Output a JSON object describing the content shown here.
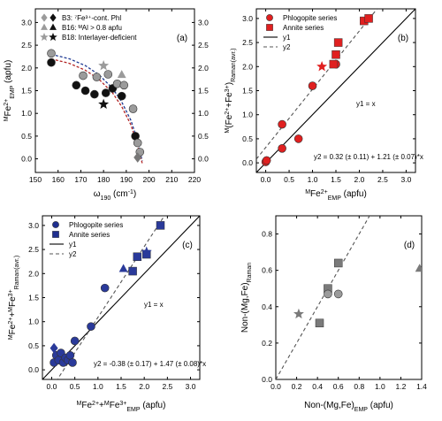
{
  "chart_data": [
    {
      "panel": "a",
      "type": "scatter",
      "xlabel": "ω190 (cm⁻¹)",
      "ylabel_left": "MFe2+EMP (apfu)",
      "ylabel_right": "",
      "xlim": [
        150,
        220
      ],
      "ylim": [
        -0.3,
        3.3
      ],
      "xticks": [
        150,
        160,
        170,
        180,
        190,
        200,
        210,
        220
      ],
      "yticks": [
        0.0,
        0.5,
        1.0,
        1.5,
        2.0,
        2.5,
        3.0
      ],
      "legend_placement": "top-left",
      "legend": [
        {
          "marker": "diamond",
          "label": "B3: ⁷Fe³⁺-cont. Phl"
        },
        {
          "marker": "triangle",
          "label": "B16: ᴹAl > 0.8 apfu"
        },
        {
          "marker": "star",
          "label": "B18: Interlayer-deficient"
        }
      ],
      "series": [
        {
          "name": "",
          "marker": "circle",
          "color": "#111111",
          "x": [
            157,
            168,
            172,
            176,
            181,
            184,
            188,
            194
          ],
          "y": [
            2.12,
            1.62,
            1.5,
            1.42,
            1.45,
            1.55,
            1.38,
            0.5
          ]
        },
        {
          "name": "",
          "marker": "circle",
          "color": "#9b9b9b",
          "x": [
            157,
            171,
            177,
            182,
            186,
            189,
            193,
            195,
            196
          ],
          "y": [
            2.32,
            1.83,
            1.8,
            1.86,
            1.65,
            1.62,
            1.1,
            0.35,
            0.15
          ]
        },
        {
          "name": "",
          "marker": "star",
          "color": "#111111",
          "x": [
            180
          ],
          "y": [
            1.2
          ]
        },
        {
          "name": "",
          "marker": "star",
          "color": "#9b9b9b",
          "x": [
            180
          ],
          "y": [
            2.05
          ]
        },
        {
          "name": "",
          "marker": "triangle",
          "color": "#9b9b9b",
          "x": [
            188
          ],
          "y": [
            1.85
          ]
        },
        {
          "name": "",
          "marker": "diamond",
          "color": "#777777",
          "x": [
            195
          ],
          "y": [
            0.03
          ]
        }
      ],
      "curves": [
        {
          "color": "#1f3a93",
          "x": [
            157,
            165,
            172,
            178,
            184,
            188,
            192,
            195,
            197
          ],
          "y": [
            2.3,
            2.2,
            2.05,
            1.85,
            1.55,
            1.25,
            0.85,
            0.4,
            -0.05
          ]
        },
        {
          "color": "#b22222",
          "x": [
            157,
            165,
            172,
            178,
            184,
            188,
            192,
            195,
            197
          ],
          "y": [
            2.2,
            2.1,
            1.95,
            1.75,
            1.45,
            1.15,
            0.75,
            0.3,
            -0.1
          ]
        }
      ]
    },
    {
      "panel": "b",
      "type": "scatter",
      "xlabel": "MFe2+EMP (apfu)",
      "ylabel": "M(Fe2++Fe3+)Raman(avr.)",
      "xlim": [
        -0.2,
        3.2
      ],
      "ylim": [
        -0.2,
        3.2
      ],
      "xticks": [
        0.0,
        0.5,
        1.0,
        1.5,
        2.0,
        2.5,
        3.0
      ],
      "yticks": [
        0.0,
        0.5,
        1.0,
        1.5,
        2.0,
        2.5,
        3.0
      ],
      "legend_placement": "top-left",
      "legend": [
        {
          "marker": "circle",
          "color": "#e02020",
          "label": "Phlogopite series"
        },
        {
          "marker": "square",
          "color": "#e02020",
          "label": "Annite series"
        },
        {
          "marker": "line",
          "label": "y1"
        },
        {
          "marker": "dash",
          "label": "y2"
        }
      ],
      "annotations": [
        "y1 = x",
        "y2 = 0.32 (± 0.11) + 1.21 (± 0.07)*x"
      ],
      "series": [
        {
          "name": "Phlogopite series",
          "marker": "circle",
          "color": "#e02020",
          "x": [
            0.0,
            0.02,
            0.35,
            0.35,
            0.7,
            1.0,
            1.5
          ],
          "y": [
            0.02,
            0.05,
            0.3,
            0.8,
            0.5,
            1.6,
            2.05
          ]
        },
        {
          "name": "Annite series",
          "marker": "square",
          "color": "#e02020",
          "x": [
            1.45,
            1.5,
            1.55,
            2.1,
            2.2
          ],
          "y": [
            2.05,
            2.25,
            2.5,
            2.95,
            3.0
          ]
        },
        {
          "name": "",
          "marker": "star",
          "color": "#e02020",
          "x": [
            1.2
          ],
          "y": [
            2.0
          ]
        }
      ],
      "lines": [
        {
          "name": "y1",
          "style": "solid",
          "intercept": 0,
          "slope": 1
        },
        {
          "name": "y2",
          "style": "dash",
          "intercept": 0.32,
          "slope": 1.21
        }
      ]
    },
    {
      "panel": "c",
      "type": "scatter",
      "xlabel": "MFe2++MFe3+EMP (apfu)",
      "ylabel": "MFe2++MFe3+Raman(avr.)",
      "xlim": [
        -0.2,
        3.2
      ],
      "ylim": [
        -0.2,
        3.2
      ],
      "xticks": [
        0.0,
        0.5,
        1.0,
        1.5,
        2.0,
        2.5,
        3.0
      ],
      "yticks": [
        0.0,
        0.5,
        1.0,
        1.5,
        2.0,
        2.5,
        3.0
      ],
      "legend_placement": "top-left",
      "legend": [
        {
          "marker": "circle",
          "color": "#1f2f8f",
          "label": "Phlogopite series"
        },
        {
          "marker": "square",
          "color": "#1f2f8f",
          "label": "Annite series"
        },
        {
          "marker": "line",
          "label": "y1"
        },
        {
          "marker": "dash",
          "label": "y2"
        }
      ],
      "annotations": [
        "y1 = x",
        "y2 = -0.38 (± 0.17) + 1.47 (± 0.08)*x"
      ],
      "series": [
        {
          "name": "Phlogopite series",
          "marker": "circle",
          "color": "#2a3a9a",
          "x": [
            0.05,
            0.1,
            0.15,
            0.2,
            0.25,
            0.3,
            0.35,
            0.4,
            0.45,
            0.5,
            0.85,
            1.15
          ],
          "y": [
            0.15,
            0.3,
            0.2,
            0.35,
            0.15,
            0.25,
            0.2,
            0.3,
            0.15,
            0.6,
            0.9,
            1.7
          ]
        },
        {
          "name": "Annite series",
          "marker": "square",
          "color": "#2a3a9a",
          "x": [
            1.75,
            1.85,
            2.05,
            2.35
          ],
          "y": [
            2.05,
            2.35,
            2.4,
            3.0
          ]
        },
        {
          "name": "",
          "marker": "diamond",
          "color": "#2a3a9a",
          "x": [
            0.05
          ],
          "y": [
            0.45
          ]
        },
        {
          "name": "",
          "marker": "triangle",
          "color": "#2a3a9a",
          "x": [
            1.55
          ],
          "y": [
            2.1
          ]
        },
        {
          "name": "",
          "marker": "star",
          "color": "#2a3a9a",
          "x": [
            2.05
          ],
          "y": [
            2.45
          ]
        }
      ],
      "lines": [
        {
          "name": "y1",
          "style": "solid",
          "intercept": 0,
          "slope": 1
        },
        {
          "name": "y2",
          "style": "dash",
          "intercept": -0.38,
          "slope": 1.47
        }
      ]
    },
    {
      "panel": "d",
      "type": "scatter",
      "xlabel": "Non-(Mg,Fe)EMP (apfu)",
      "ylabel": "Non-(Mg,Fe)Raman",
      "xlim": [
        0.0,
        1.4
      ],
      "ylim": [
        0.0,
        0.9
      ],
      "xticks": [
        0.0,
        0.2,
        0.4,
        0.6,
        0.8,
        1.0,
        1.2,
        1.4
      ],
      "yticks": [
        0.0,
        0.2,
        0.4,
        0.6,
        0.8
      ],
      "series": [
        {
          "name": "",
          "marker": "square",
          "color": "#7a7a7a",
          "x": [
            0.42,
            0.5,
            0.6
          ],
          "y": [
            0.31,
            0.5,
            0.64
          ]
        },
        {
          "name": "",
          "marker": "circle",
          "color": "#9b9b9b",
          "x": [
            0.5,
            0.6
          ],
          "y": [
            0.47,
            0.47
          ]
        },
        {
          "name": "",
          "marker": "star",
          "color": "#7a7a7a",
          "x": [
            0.22
          ],
          "y": [
            0.36
          ]
        },
        {
          "name": "",
          "marker": "triangle",
          "color": "#7a7a7a",
          "x": [
            1.38
          ],
          "y": [
            0.61
          ]
        }
      ],
      "lines": [
        {
          "name": "",
          "style": "dash",
          "intercept": 0,
          "slope": 1
        }
      ]
    }
  ]
}
